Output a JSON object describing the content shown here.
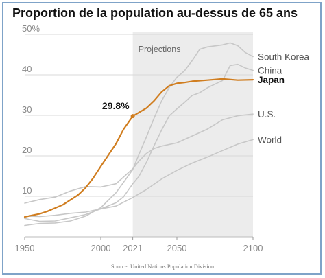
{
  "title": "Proportion de la population au-dessus de 65 ans",
  "chart_data": {
    "type": "line",
    "title": "Proportion de la population au-dessus de 65 ans",
    "xlabel": "",
    "ylabel": "",
    "xlim": [
      1950,
      2100
    ],
    "ylim": [
      0,
      50
    ],
    "x_ticks": [
      1950,
      2000,
      2021,
      2050,
      2100
    ],
    "y_ticks": [
      10,
      20,
      30,
      40,
      50
    ],
    "y_tick_labels": [
      "10",
      "20",
      "30",
      "40",
      "50%"
    ],
    "grid": true,
    "projection_region": {
      "start": 2021,
      "end": 2100,
      "label": "Projections"
    },
    "annotation": {
      "text": "29.8%",
      "x": 2021,
      "y": 29.8
    },
    "highlight_color": "#d07d1f",
    "other_color": "#c7c7c7",
    "source": "Source: United Nations Population Division",
    "series": [
      {
        "name": "Japan",
        "highlight": true,
        "x": [
          1950,
          1955,
          1960,
          1965,
          1970,
          1975,
          1980,
          1985,
          1990,
          1995,
          2000,
          2005,
          2010,
          2015,
          2021,
          2025,
          2030,
          2035,
          2040,
          2045,
          2050,
          2055,
          2060,
          2070,
          2080,
          2090,
          2100
        ],
        "y": [
          4.9,
          5.3,
          5.7,
          6.3,
          7.1,
          7.9,
          9.1,
          10.3,
          12.1,
          14.5,
          17.4,
          20.2,
          23.0,
          26.6,
          29.8,
          30.7,
          31.8,
          33.6,
          35.8,
          37.3,
          37.9,
          38.1,
          38.4,
          38.7,
          39.0,
          38.7,
          38.8
        ]
      },
      {
        "name": "South Korea",
        "highlight": false,
        "x": [
          1950,
          1960,
          1970,
          1980,
          1990,
          2000,
          2010,
          2021,
          2025,
          2030,
          2035,
          2040,
          2045,
          2050,
          2055,
          2060,
          2065,
          2070,
          2080,
          2085,
          2090,
          2095,
          2100
        ],
        "y": [
          2.8,
          3.3,
          3.4,
          3.9,
          5.1,
          7.2,
          10.9,
          16.6,
          20.3,
          24.7,
          29.3,
          33.6,
          36.9,
          39.4,
          41.0,
          43.5,
          46.3,
          46.9,
          47.4,
          47.9,
          47.2,
          45.5,
          44.5
        ]
      },
      {
        "name": "China",
        "highlight": false,
        "x": [
          1950,
          1960,
          1970,
          1980,
          1990,
          2000,
          2010,
          2015,
          2021,
          2025,
          2030,
          2035,
          2040,
          2045,
          2050,
          2055,
          2060,
          2065,
          2070,
          2080,
          2085,
          2090,
          2095,
          2100
        ],
        "y": [
          4.5,
          3.8,
          3.9,
          4.7,
          5.5,
          6.9,
          8.4,
          9.9,
          13.1,
          14.9,
          18.4,
          22.5,
          26.4,
          29.9,
          31.6,
          33.2,
          34.9,
          35.6,
          36.8,
          38.6,
          42.3,
          42.6,
          41.7,
          41.1
        ]
      },
      {
        "name": "U.S.",
        "highlight": false,
        "x": [
          1950,
          1960,
          1970,
          1980,
          1990,
          2000,
          2010,
          2021,
          2025,
          2030,
          2035,
          2040,
          2050,
          2060,
          2070,
          2080,
          2090,
          2100
        ],
        "y": [
          8.3,
          9.2,
          9.8,
          11.3,
          12.4,
          12.3,
          13.1,
          16.8,
          18.7,
          20.6,
          21.8,
          22.4,
          23.2,
          24.9,
          26.6,
          28.9,
          29.9,
          30.3
        ]
      },
      {
        "name": "World",
        "highlight": false,
        "x": [
          1950,
          1960,
          1970,
          1980,
          1990,
          2000,
          2010,
          2021,
          2030,
          2040,
          2050,
          2060,
          2070,
          2080,
          2090,
          2100
        ],
        "y": [
          5.1,
          5.0,
          5.3,
          5.8,
          6.1,
          6.9,
          7.6,
          9.7,
          11.7,
          14.3,
          16.4,
          18.2,
          19.7,
          21.3,
          22.9,
          24.0
        ]
      }
    ]
  }
}
